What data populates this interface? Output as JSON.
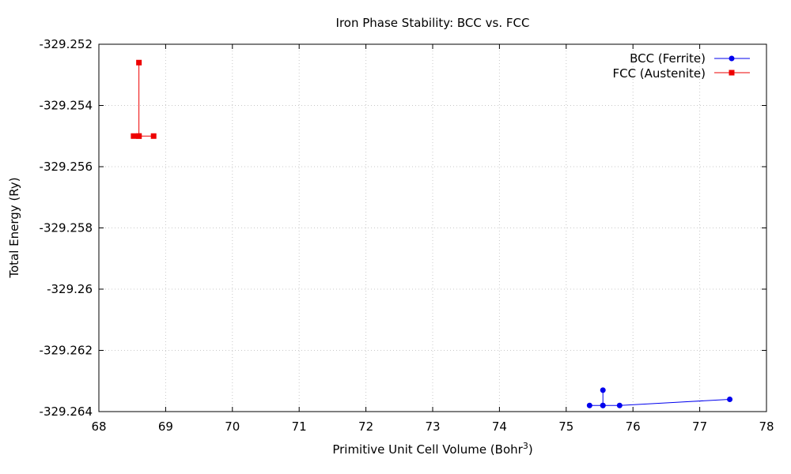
{
  "chart_data": {
    "type": "line",
    "title": "Iron Phase Stability: BCC vs. FCC",
    "xlabel": "Primitive Unit Cell Volume (Bohr",
    "xlabel_superscript": "3",
    "xlabel_suffix": ")",
    "ylabel": "Total Energy (Ry)",
    "xlim": [
      68,
      78
    ],
    "ylim": [
      -329.264,
      -329.252
    ],
    "x_ticks": [
      68,
      69,
      70,
      71,
      72,
      73,
      74,
      75,
      76,
      77,
      78
    ],
    "x_tick_labels": [
      "68",
      "69",
      "70",
      "71",
      "72",
      "73",
      "74",
      "75",
      "76",
      "77",
      "78"
    ],
    "y_ticks": [
      -329.252,
      -329.254,
      -329.256,
      -329.258,
      -329.26,
      -329.262,
      -329.264
    ],
    "y_tick_labels": [
      "-329.252",
      "-329.254",
      "-329.256",
      "-329.258",
      "-329.26",
      "-329.262",
      "-329.264"
    ],
    "grid": true,
    "legend_position": "top-right",
    "series": [
      {
        "name": "BCC (Ferrite)",
        "color": "#0000ee",
        "marker": "circle",
        "x": [
          75.35,
          75.55,
          75.55,
          75.55,
          75.8,
          77.45
        ],
        "y": [
          -329.2638,
          -329.2638,
          -329.2633,
          -329.2638,
          -329.2638,
          -329.2636
        ]
      },
      {
        "name": "FCC (Austenite)",
        "color": "#ee0000",
        "marker": "square",
        "x": [
          68.52,
          68.6,
          68.6,
          68.6,
          68.82
        ],
        "y": [
          -329.255,
          -329.255,
          -329.2526,
          -329.255,
          -329.255
        ]
      }
    ]
  }
}
